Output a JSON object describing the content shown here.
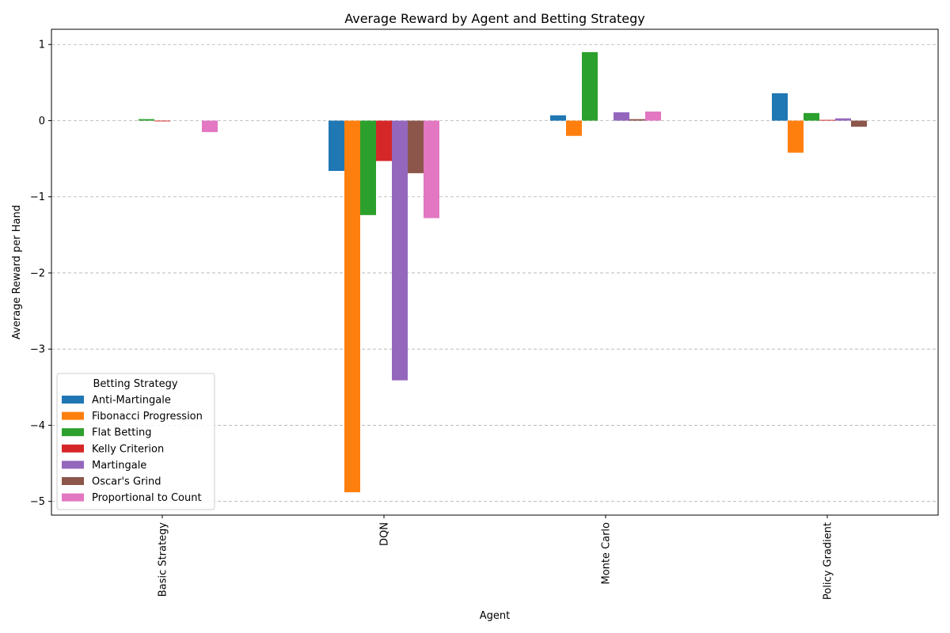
{
  "chart_data": {
    "type": "bar",
    "title": "Average Reward by Agent and Betting Strategy",
    "xlabel": "Agent",
    "ylabel": "Average Reward per Hand",
    "categories": [
      "Basic Strategy",
      "DQN",
      "Monte Carlo",
      "Policy Gradient"
    ],
    "ylim": [
      -5.18,
      1.2
    ],
    "yticks": [
      1,
      0,
      -1,
      -2,
      -3,
      -4,
      -5
    ],
    "ytick_labels": [
      "1",
      "0",
      "−1",
      "−2",
      "−3",
      "−4",
      "−5"
    ],
    "grid": "y-dashed",
    "legend": {
      "title": "Betting Strategy",
      "position": "lower-left"
    },
    "series": [
      {
        "name": "Anti-Martingale",
        "color": "#1f77b4",
        "values": [
          0.0,
          -0.66,
          0.07,
          0.36
        ]
      },
      {
        "name": "Fibonacci Progression",
        "color": "#ff7f0e",
        "values": [
          0.0,
          -4.88,
          -0.2,
          -0.42
        ]
      },
      {
        "name": "Flat Betting",
        "color": "#2ca02c",
        "values": [
          0.02,
          -1.24,
          0.9,
          0.1
        ]
      },
      {
        "name": "Kelly Criterion",
        "color": "#d62728",
        "values": [
          -0.01,
          -0.53,
          0.0,
          0.01
        ]
      },
      {
        "name": "Martingale",
        "color": "#9467bd",
        "values": [
          0.0,
          -3.41,
          0.11,
          0.03
        ]
      },
      {
        "name": "Oscar's Grind",
        "color": "#8c564b",
        "values": [
          0.0,
          -0.69,
          0.02,
          -0.08
        ]
      },
      {
        "name": "Proportional to Count",
        "color": "#e377c2",
        "values": [
          -0.15,
          -1.28,
          0.12,
          0.0
        ]
      }
    ]
  }
}
